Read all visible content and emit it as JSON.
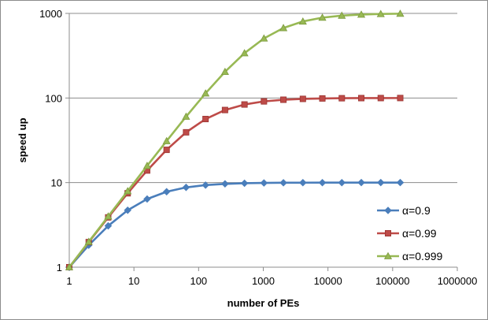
{
  "chart_data": {
    "type": "line",
    "title": "",
    "xlabel": "number of PEs",
    "ylabel": "speed up",
    "x_scale": "log",
    "y_scale": "log",
    "xlim": [
      1,
      1000000
    ],
    "ylim": [
      1,
      1000
    ],
    "x_ticks": [
      1,
      10,
      100,
      1000,
      10000,
      100000,
      1000000
    ],
    "x_tick_labels": [
      "1",
      "10",
      "100",
      "1000",
      "10000",
      "100000",
      "1000000"
    ],
    "y_ticks": [
      1,
      10,
      100,
      1000
    ],
    "y_tick_labels": [
      "1",
      "10",
      "100",
      "1000"
    ],
    "grid": "horizontal major gridlines",
    "legend_position": "right",
    "x": [
      1,
      2,
      4,
      8,
      16,
      32,
      64,
      128,
      256,
      512,
      1024,
      2048,
      4096,
      8192,
      16384,
      32768,
      65536,
      131072
    ],
    "series": [
      {
        "name": "α=0.9",
        "color": "#4a7ebb",
        "marker": "diamond",
        "values": [
          1.0,
          1.82,
          3.08,
          4.71,
          6.4,
          7.8,
          8.77,
          9.34,
          9.66,
          9.83,
          9.91,
          9.96,
          9.98,
          9.99,
          9.99,
          10.0,
          10.0,
          10.0
        ]
      },
      {
        "name": "α=0.99",
        "color": "#be4b48",
        "marker": "square",
        "values": [
          1.0,
          1.98,
          3.88,
          7.48,
          13.9,
          24.4,
          39.3,
          56.4,
          72.1,
          83.8,
          91.2,
          95.4,
          97.6,
          98.8,
          99.4,
          99.7,
          99.8,
          99.9
        ]
      },
      {
        "name": "α=0.999",
        "color": "#98b954",
        "marker": "triangle",
        "values": [
          1.0,
          2.0,
          3.99,
          7.94,
          15.8,
          31.0,
          60.2,
          113.5,
          204.0,
          339.0,
          506.0,
          672.0,
          804.0,
          891.0,
          942.0,
          970.0,
          985.0,
          992.0
        ]
      }
    ]
  }
}
